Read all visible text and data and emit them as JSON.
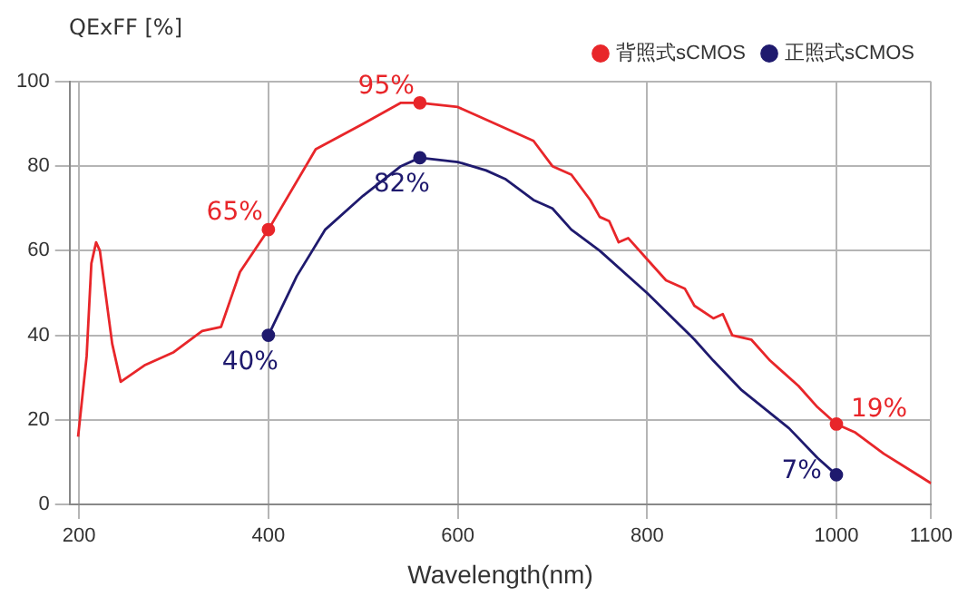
{
  "chart_data": {
    "type": "line",
    "ylabel": "QExFF [%]",
    "xlabel": "Wavelength(nm)",
    "xlim": [
      190,
      1100
    ],
    "xticks": [
      200,
      400,
      600,
      800,
      1000,
      1100
    ],
    "ylim": [
      0,
      100
    ],
    "yticks": [
      0,
      20,
      40,
      60,
      80,
      100
    ],
    "grid": true,
    "legend": "top right",
    "line_style": "solid",
    "series": [
      {
        "name": "背照式sCMOS",
        "color": "#e8262a",
        "x": [
          199,
          208,
          213,
          218,
          222,
          235,
          244,
          270,
          300,
          330,
          350,
          370,
          400,
          450,
          500,
          540,
          560,
          600,
          620,
          650,
          680,
          700,
          720,
          740,
          750,
          760,
          770,
          780,
          800,
          820,
          840,
          850,
          870,
          880,
          890,
          910,
          930,
          940,
          960,
          980,
          1000,
          1020,
          1050,
          1100
        ],
        "values": [
          16,
          35,
          57,
          62,
          60,
          38,
          29,
          33,
          36,
          41,
          42,
          55,
          65,
          84,
          90,
          95,
          95,
          94,
          92,
          89,
          86,
          80,
          78,
          72,
          68,
          67,
          62,
          63,
          58,
          53,
          51,
          47,
          44,
          45,
          40,
          39,
          34,
          32,
          28,
          23,
          19,
          17,
          12,
          5
        ],
        "value_labels": [
          null,
          null,
          null,
          null,
          null,
          null,
          null,
          null,
          null,
          null,
          null,
          null,
          "65%",
          null,
          null,
          null,
          "95%",
          null,
          null,
          null,
          null,
          null,
          null,
          null,
          null,
          null,
          null,
          null,
          null,
          null,
          null,
          null,
          null,
          null,
          null,
          null,
          null,
          null,
          null,
          null,
          "19%",
          null,
          null,
          null
        ]
      },
      {
        "name": "正照式sCMOS",
        "color": "#1f1a6e",
        "x": [
          400,
          430,
          460,
          500,
          540,
          560,
          600,
          630,
          650,
          680,
          700,
          720,
          750,
          800,
          850,
          870,
          900,
          950,
          980,
          1000
        ],
        "values": [
          40,
          54,
          65,
          73,
          80,
          82,
          81,
          79,
          77,
          72,
          70,
          65,
          60,
          50,
          39,
          34,
          27,
          18,
          11,
          7
        ],
        "value_labels": [
          "40%",
          null,
          null,
          null,
          null,
          "82%",
          null,
          null,
          null,
          null,
          null,
          null,
          null,
          null,
          null,
          null,
          null,
          null,
          null,
          "7%"
        ]
      }
    ]
  }
}
